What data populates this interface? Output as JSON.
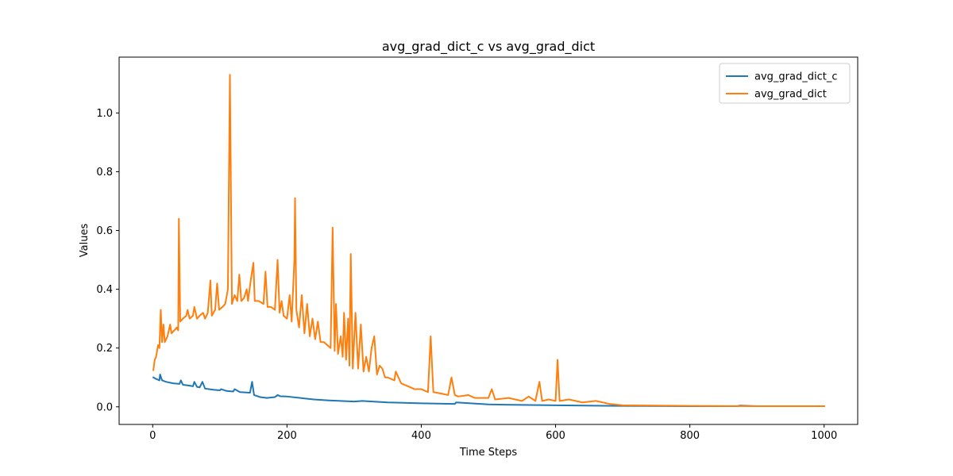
{
  "chart_data": {
    "type": "line",
    "title": "avg_grad_dict_c vs avg_grad_dict",
    "xlabel": "Time Steps",
    "ylabel": "Values",
    "xlim": [
      -50,
      1050
    ],
    "ylim": [
      -0.06,
      1.19
    ],
    "xticks": [
      0,
      200,
      400,
      600,
      800,
      1000
    ],
    "yticks": [
      0.0,
      0.2,
      0.4,
      0.6,
      0.8,
      1.0
    ],
    "grid": false,
    "legend_position": "top-right",
    "series": [
      {
        "name": "avg_grad_dict_c",
        "color": "#1f77b4",
        "points": [
          [
            1,
            0.1
          ],
          [
            5,
            0.095
          ],
          [
            10,
            0.09
          ],
          [
            11,
            0.11
          ],
          [
            14,
            0.09
          ],
          [
            20,
            0.085
          ],
          [
            30,
            0.08
          ],
          [
            40,
            0.078
          ],
          [
            42,
            0.09
          ],
          [
            45,
            0.075
          ],
          [
            55,
            0.072
          ],
          [
            60,
            0.07
          ],
          [
            62,
            0.085
          ],
          [
            66,
            0.068
          ],
          [
            70,
            0.066
          ],
          [
            74,
            0.085
          ],
          [
            78,
            0.062
          ],
          [
            90,
            0.058
          ],
          [
            100,
            0.056
          ],
          [
            102,
            0.06
          ],
          [
            110,
            0.054
          ],
          [
            120,
            0.052
          ],
          [
            122,
            0.06
          ],
          [
            130,
            0.05
          ],
          [
            145,
            0.048
          ],
          [
            148,
            0.085
          ],
          [
            151,
            0.04
          ],
          [
            160,
            0.033
          ],
          [
            170,
            0.03
          ],
          [
            182,
            0.033
          ],
          [
            186,
            0.04
          ],
          [
            190,
            0.036
          ],
          [
            200,
            0.035
          ],
          [
            220,
            0.03
          ],
          [
            240,
            0.025
          ],
          [
            260,
            0.022
          ],
          [
            300,
            0.018
          ],
          [
            312,
            0.02
          ],
          [
            350,
            0.015
          ],
          [
            400,
            0.012
          ],
          [
            450,
            0.01
          ],
          [
            452,
            0.015
          ],
          [
            500,
            0.008
          ],
          [
            600,
            0.005
          ],
          [
            700,
            0.003
          ],
          [
            800,
            0.002
          ],
          [
            870,
            0.002
          ],
          [
            875,
            0.004
          ],
          [
            900,
            0.002
          ],
          [
            1000,
            0.002
          ]
        ]
      },
      {
        "name": "avg_grad_dict",
        "color": "#ff7f0e",
        "points": [
          [
            1,
            0.125
          ],
          [
            3,
            0.16
          ],
          [
            5,
            0.17
          ],
          [
            8,
            0.21
          ],
          [
            10,
            0.2
          ],
          [
            12,
            0.33
          ],
          [
            14,
            0.22
          ],
          [
            16,
            0.28
          ],
          [
            18,
            0.22
          ],
          [
            22,
            0.24
          ],
          [
            26,
            0.28
          ],
          [
            28,
            0.25
          ],
          [
            32,
            0.26
          ],
          [
            36,
            0.27
          ],
          [
            38,
            0.26
          ],
          [
            39,
            0.64
          ],
          [
            41,
            0.29
          ],
          [
            45,
            0.3
          ],
          [
            50,
            0.31
          ],
          [
            52,
            0.33
          ],
          [
            55,
            0.3
          ],
          [
            60,
            0.31
          ],
          [
            62,
            0.34
          ],
          [
            66,
            0.3
          ],
          [
            70,
            0.31
          ],
          [
            75,
            0.32
          ],
          [
            78,
            0.3
          ],
          [
            82,
            0.32
          ],
          [
            86,
            0.43
          ],
          [
            88,
            0.31
          ],
          [
            93,
            0.33
          ],
          [
            96,
            0.42
          ],
          [
            99,
            0.33
          ],
          [
            104,
            0.34
          ],
          [
            108,
            0.35
          ],
          [
            112,
            0.4
          ],
          [
            115,
            1.13
          ],
          [
            118,
            0.35
          ],
          [
            122,
            0.38
          ],
          [
            126,
            0.36
          ],
          [
            129,
            0.45
          ],
          [
            132,
            0.36
          ],
          [
            136,
            0.37
          ],
          [
            140,
            0.4
          ],
          [
            142,
            0.36
          ],
          [
            146,
            0.43
          ],
          [
            150,
            0.49
          ],
          [
            152,
            0.36
          ],
          [
            158,
            0.36
          ],
          [
            165,
            0.35
          ],
          [
            168,
            0.46
          ],
          [
            171,
            0.34
          ],
          [
            176,
            0.34
          ],
          [
            182,
            0.33
          ],
          [
            186,
            0.5
          ],
          [
            189,
            0.32
          ],
          [
            192,
            0.36
          ],
          [
            195,
            0.31
          ],
          [
            200,
            0.3
          ],
          [
            204,
            0.38
          ],
          [
            207,
            0.29
          ],
          [
            211,
            0.5
          ],
          [
            212,
            0.71
          ],
          [
            214,
            0.33
          ],
          [
            218,
            0.27
          ],
          [
            222,
            0.38
          ],
          [
            226,
            0.25
          ],
          [
            230,
            0.35
          ],
          [
            234,
            0.24
          ],
          [
            238,
            0.3
          ],
          [
            242,
            0.23
          ],
          [
            246,
            0.29
          ],
          [
            250,
            0.22
          ],
          [
            255,
            0.22
          ],
          [
            260,
            0.21
          ],
          [
            265,
            0.2
          ],
          [
            268,
            0.61
          ],
          [
            271,
            0.19
          ],
          [
            273,
            0.35
          ],
          [
            276,
            0.18
          ],
          [
            280,
            0.24
          ],
          [
            283,
            0.17
          ],
          [
            285,
            0.32
          ],
          [
            288,
            0.16
          ],
          [
            291,
            0.3
          ],
          [
            293,
            0.14
          ],
          [
            295,
            0.52
          ],
          [
            298,
            0.13
          ],
          [
            302,
            0.32
          ],
          [
            306,
            0.13
          ],
          [
            310,
            0.28
          ],
          [
            314,
            0.12
          ],
          [
            318,
            0.17
          ],
          [
            322,
            0.12
          ],
          [
            326,
            0.2
          ],
          [
            330,
            0.24
          ],
          [
            334,
            0.11
          ],
          [
            338,
            0.14
          ],
          [
            342,
            0.13
          ],
          [
            346,
            0.1
          ],
          [
            350,
            0.1
          ],
          [
            360,
            0.09
          ],
          [
            362,
            0.12
          ],
          [
            370,
            0.08
          ],
          [
            380,
            0.07
          ],
          [
            390,
            0.06
          ],
          [
            400,
            0.06
          ],
          [
            410,
            0.05
          ],
          [
            414,
            0.24
          ],
          [
            418,
            0.05
          ],
          [
            430,
            0.045
          ],
          [
            440,
            0.04
          ],
          [
            445,
            0.1
          ],
          [
            450,
            0.04
          ],
          [
            455,
            0.035
          ],
          [
            470,
            0.04
          ],
          [
            480,
            0.03
          ],
          [
            500,
            0.03
          ],
          [
            505,
            0.06
          ],
          [
            510,
            0.025
          ],
          [
            530,
            0.03
          ],
          [
            550,
            0.02
          ],
          [
            560,
            0.035
          ],
          [
            570,
            0.02
          ],
          [
            576,
            0.085
          ],
          [
            580,
            0.02
          ],
          [
            590,
            0.025
          ],
          [
            600,
            0.02
          ],
          [
            603,
            0.16
          ],
          [
            606,
            0.02
          ],
          [
            620,
            0.025
          ],
          [
            640,
            0.015
          ],
          [
            660,
            0.02
          ],
          [
            680,
            0.01
          ],
          [
            700,
            0.005
          ],
          [
            800,
            0.003
          ],
          [
            900,
            0.002
          ],
          [
            1000,
            0.002
          ]
        ]
      }
    ]
  }
}
